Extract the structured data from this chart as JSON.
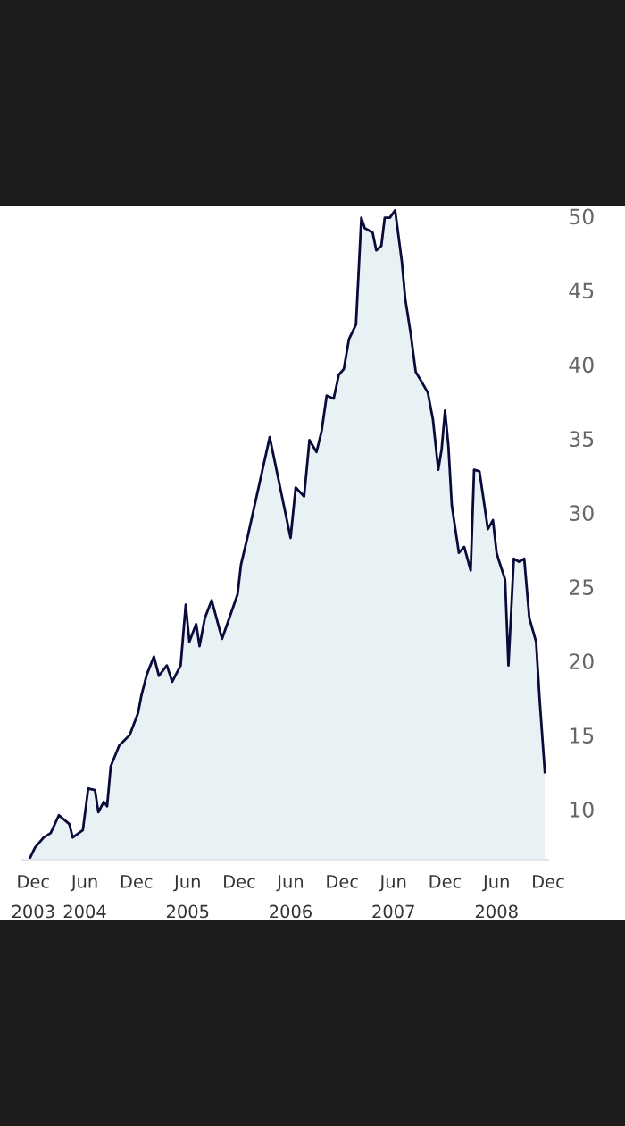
{
  "chart_data": {
    "type": "area",
    "ylim": [
      6.6,
      50.6
    ],
    "yticks": [
      10,
      15,
      20,
      25,
      30,
      35,
      40,
      45,
      50
    ],
    "xlim": [
      "2003-10-20",
      "2008-12-01"
    ],
    "xticks": [
      {
        "value": "2003-12-01",
        "label": "Dec\n2003"
      },
      {
        "value": "2004-06-01",
        "label": "Jun\n2004"
      },
      {
        "value": "2004-12-01",
        "label": "Dec"
      },
      {
        "value": "2005-06-01",
        "label": "Jun\n2005"
      },
      {
        "value": "2005-12-01",
        "label": "Dec"
      },
      {
        "value": "2006-06-01",
        "label": "Jun\n2006"
      },
      {
        "value": "2006-12-01",
        "label": "Dec"
      },
      {
        "value": "2007-06-01",
        "label": "Jun\n2007"
      },
      {
        "value": "2007-12-01",
        "label": "Dec"
      },
      {
        "value": "2008-06-01",
        "label": "Jun\n2008"
      },
      {
        "value": "2008-12-01",
        "label": "Dec"
      }
    ],
    "grid": false,
    "series": [
      {
        "color": "#0b0b3b",
        "x": [
          "2003-11-19",
          "2003-12-07",
          "2004-01-07",
          "2004-02-01",
          "2004-03-01",
          "2004-04-07",
          "2004-04-19",
          "2004-05-25",
          "2004-06-13",
          "2004-07-07",
          "2004-07-19",
          "2004-08-07",
          "2004-08-19",
          "2004-09-01",
          "2004-10-01",
          "2004-11-07",
          "2004-12-07",
          "2004-12-19",
          "2005-01-07",
          "2005-02-01",
          "2005-02-19",
          "2005-03-19",
          "2005-04-07",
          "2005-05-07",
          "2005-05-25",
          "2005-06-07",
          "2005-07-01",
          "2005-07-13",
          "2005-08-01",
          "2005-08-25",
          "2005-10-01",
          "2005-11-25",
          "2005-12-07",
          "2006-01-01",
          "2006-03-19",
          "2006-06-01",
          "2006-06-19",
          "2006-07-19",
          "2006-08-07",
          "2006-09-01",
          "2006-09-19",
          "2006-10-07",
          "2006-11-01",
          "2006-11-19",
          "2006-12-07",
          "2006-12-25",
          "2007-01-19",
          "2007-02-07",
          "2007-02-19",
          "2007-03-19",
          "2007-04-01",
          "2007-04-19",
          "2007-05-01",
          "2007-05-19",
          "2007-06-07",
          "2007-07-01",
          "2007-07-13",
          "2007-08-01",
          "2007-08-19",
          "2007-09-07",
          "2007-10-01",
          "2007-10-19",
          "2007-11-07",
          "2007-11-19",
          "2007-12-01",
          "2007-12-13",
          "2007-12-25",
          "2008-01-19",
          "2008-02-07",
          "2008-03-01",
          "2008-03-13",
          "2008-04-01",
          "2008-05-01",
          "2008-05-19",
          "2008-06-01",
          "2008-06-07",
          "2008-07-01",
          "2008-07-13",
          "2008-08-01",
          "2008-08-19",
          "2008-09-07",
          "2008-09-25",
          "2008-10-19",
          "2008-11-01",
          "2008-11-19"
        ],
        "values": [
          6.7,
          7.4,
          8.1,
          8.4,
          9.6,
          9.0,
          8.1,
          8.6,
          11.4,
          11.3,
          9.8,
          10.5,
          10.2,
          12.9,
          14.3,
          15.0,
          16.5,
          17.7,
          19.1,
          20.3,
          19.0,
          19.7,
          18.6,
          19.7,
          23.8,
          21.3,
          22.5,
          21.0,
          22.9,
          24.1,
          21.5,
          24.5,
          26.5,
          28.5,
          35.1,
          28.3,
          31.7,
          31.1,
          34.9,
          34.1,
          35.5,
          37.9,
          37.7,
          39.3,
          39.7,
          41.7,
          42.7,
          49.9,
          49.2,
          48.9,
          47.7,
          48.0,
          49.9,
          49.9,
          50.4,
          46.9,
          44.4,
          42.1,
          39.5,
          38.9,
          38.1,
          36.3,
          32.9,
          34.3,
          36.9,
          34.5,
          30.5,
          27.3,
          27.7,
          26.1,
          32.9,
          32.8,
          28.9,
          29.5,
          27.3,
          26.9,
          25.5,
          19.7,
          26.9,
          26.7,
          26.9,
          22.9,
          21.3,
          17.3,
          12.5
        ]
      }
    ]
  }
}
